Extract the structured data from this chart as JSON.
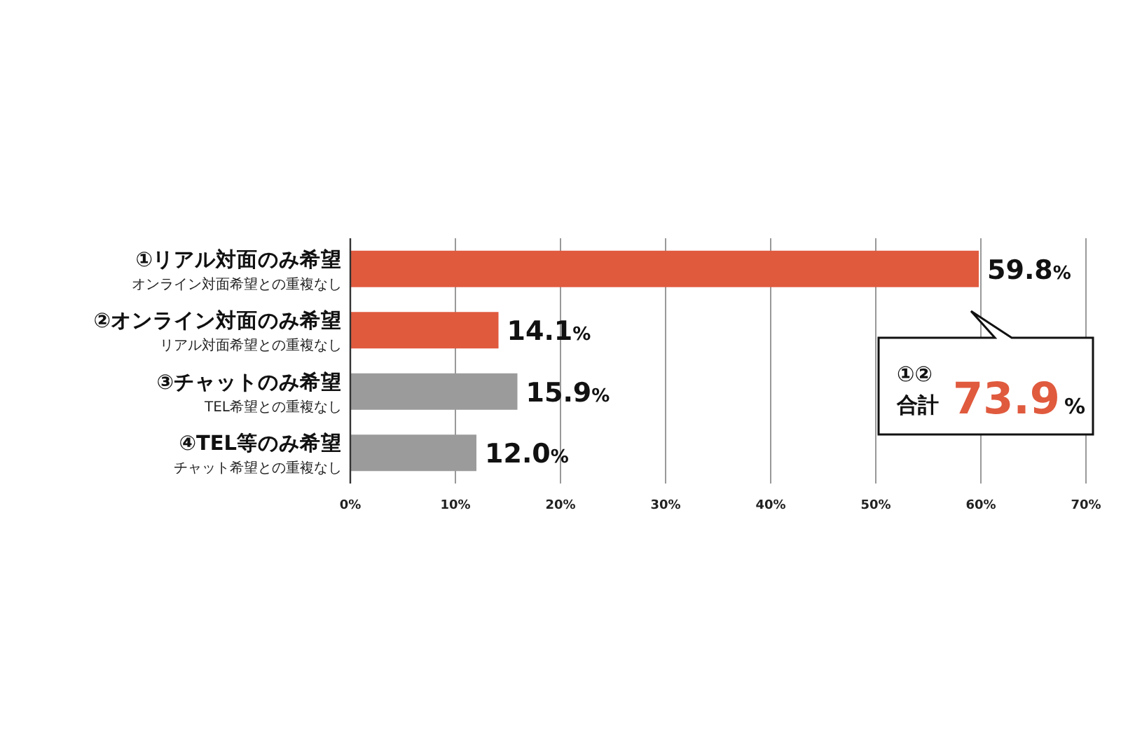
{
  "chart_data": {
    "type": "bar",
    "orientation": "horizontal",
    "categories": [
      "①リアル対面のみ希望",
      "②オンライン対面のみ希望",
      "③チャットのみ希望",
      "④TEL等のみ希望"
    ],
    "values": [
      59.8,
      14.1,
      15.9,
      12.0
    ],
    "colors": [
      "#e05a3e",
      "#e05a3e",
      "#9b9b9b",
      "#9b9b9b"
    ],
    "value_labels": [
      "59.8%",
      "14.1%",
      "15.9%",
      "12.0%"
    ],
    "xlim": [
      0,
      70
    ],
    "xticks": [
      {
        "value": 0,
        "label": "0%"
      },
      {
        "value": 10,
        "label": "10%"
      },
      {
        "value": 20,
        "label": "20%"
      },
      {
        "value": 30,
        "label": "30%"
      },
      {
        "value": 40,
        "label": "40%"
      },
      {
        "value": 50,
        "label": "50%"
      },
      {
        "value": 60,
        "label": "60%"
      },
      {
        "value": 70,
        "label": "70%"
      }
    ],
    "grid": "x",
    "annotations": [
      "オンライン対面希望との重複なし",
      "リアル対面希望との重複なし",
      "TEL希望との重複なし",
      "チャット希望との重複なし",
      "①②",
      "合計",
      "73.9%"
    ]
  }
}
